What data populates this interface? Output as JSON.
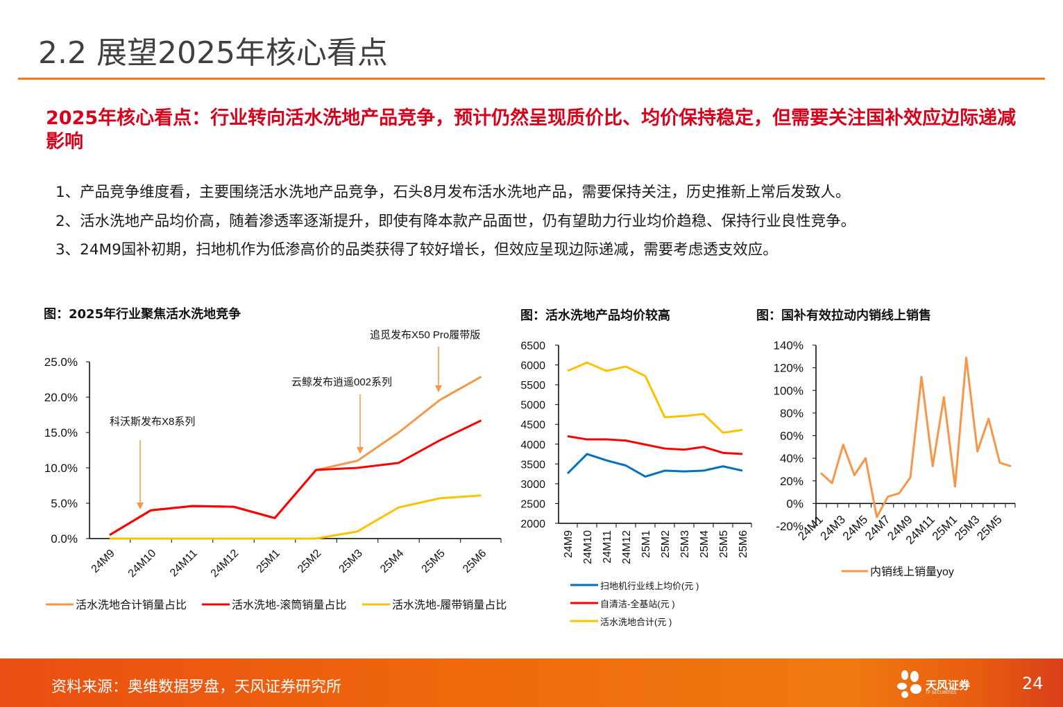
{
  "title": "2.2 展望2025年核心看点",
  "headline": "2025年核心看点：行业转向活水洗地产品竞争，预计仍然呈现质价比、均价保持稳定，但需要关注国补效应边际递减影响",
  "bullets": [
    "1、产品竞争维度看，主要围绕活水洗地产品竞争，石头8月发布活水洗地产品，需要保持关注，历史推新上常后发致人。",
    "2、活水洗地产品均价高，随着渗透率逐渐提升，即使有降本款产品面世，仍有望助力行业均价趋稳、保持行业良性竞争。",
    "3、24M9国补初期，扫地机作为低渗高价的品类获得了较好增长，但效应呈现边际递减，需要考虑透支效应。"
  ],
  "footer": {
    "source": "资料来源：奥维数据罗盘，天风证券研究所",
    "logo_text": "天风证券",
    "logo_sub": "TF SECURITIES",
    "page": "24"
  },
  "colors": {
    "accent": "#f07a1e",
    "headline": "#d9001b",
    "orange": "#f79646",
    "red": "#ff0000",
    "yellow": "#ffc000",
    "blue": "#0070c0"
  },
  "chart_data": [
    {
      "type": "line",
      "title": "图：2025年行业聚焦活水洗地竞争",
      "categories": [
        "24M9",
        "24M10",
        "24M11",
        "24M12",
        "25M1",
        "25M2",
        "25M3",
        "25M4",
        "25M5",
        "25M6"
      ],
      "ylim": [
        0,
        25
      ],
      "yticks": [
        "0.0%",
        "5.0%",
        "10.0%",
        "15.0%",
        "20.0%",
        "25.0%"
      ],
      "legend": "bottom",
      "series": [
        {
          "name": "活水洗地合计销量占比",
          "color": "#f79646",
          "values": [
            0.5,
            4.0,
            4.6,
            4.5,
            2.9,
            9.7,
            11.0,
            15.0,
            19.6,
            22.9
          ]
        },
        {
          "name": "活水洗地-滚筒销量占比",
          "color": "#ff0000",
          "values": [
            0.5,
            4.0,
            4.6,
            4.5,
            2.9,
            9.7,
            10.0,
            10.7,
            13.9,
            16.7
          ]
        },
        {
          "name": "活水洗地-履带销量占比",
          "color": "#ffc000",
          "values": [
            0,
            0,
            0,
            0,
            0,
            0,
            1.0,
            4.4,
            5.7,
            6.1
          ]
        }
      ],
      "annotations": [
        {
          "text": "科沃斯发布X8系列",
          "category": "24M10"
        },
        {
          "text": "云鲸发布逍遥002系列",
          "category": "25M3"
        },
        {
          "text": "追觅发布X50 Pro履带版",
          "category": "25M5"
        }
      ]
    },
    {
      "type": "line",
      "title": "图：活水洗地产品均价较高",
      "categories": [
        "24M9",
        "24M10",
        "24M11",
        "24M12",
        "25M1",
        "25M2",
        "25M3",
        "25M4",
        "25M5",
        "25M6"
      ],
      "ylim": [
        2000,
        6500
      ],
      "yticks": [
        "2000",
        "2500",
        "3000",
        "3500",
        "4000",
        "4500",
        "5000",
        "5500",
        "6000",
        "6500"
      ],
      "legend": "bottom",
      "series": [
        {
          "name": "扫地机行业线上均价(元 )",
          "color": "#0070c0",
          "values": [
            3260,
            3750,
            3590,
            3460,
            3180,
            3330,
            3310,
            3330,
            3440,
            3330
          ]
        },
        {
          "name": "自清洁-全基站(元 )",
          "color": "#ff0000",
          "values": [
            4200,
            4120,
            4120,
            4090,
            3990,
            3890,
            3860,
            3930,
            3780,
            3750
          ]
        },
        {
          "name": "活水洗地合计(元 )",
          "color": "#ffc000",
          "values": [
            5850,
            6060,
            5850,
            5960,
            5720,
            4680,
            4710,
            4760,
            4290,
            4360
          ]
        }
      ]
    },
    {
      "type": "line",
      "title": "图：国补有效拉动内销线上销售",
      "categories": [
        "24M1",
        "24M2",
        "24M3",
        "24M4",
        "24M5",
        "24M6",
        "24M7",
        "24M8",
        "24M9",
        "24M10",
        "24M11",
        "24M12",
        "25M1",
        "25M2",
        "25M3",
        "25M4",
        "25M5",
        "25M6"
      ],
      "tick_labels": [
        "24M1",
        "24M3",
        "24M5",
        "24M7",
        "24M9",
        "24M11",
        "25M1",
        "25M3",
        "25M5"
      ],
      "ylim": [
        -20,
        140
      ],
      "yticks": [
        "-20%",
        "0%",
        "20%",
        "40%",
        "60%",
        "80%",
        "100%",
        "120%",
        "140%"
      ],
      "legend": "bottom",
      "series": [
        {
          "name": "内销线上销量yoy",
          "color": "#f79646",
          "values": [
            27,
            18,
            52,
            25,
            40,
            -12,
            6,
            9,
            23,
            112,
            33,
            94,
            15,
            129,
            46,
            75,
            36,
            33
          ]
        }
      ]
    }
  ]
}
